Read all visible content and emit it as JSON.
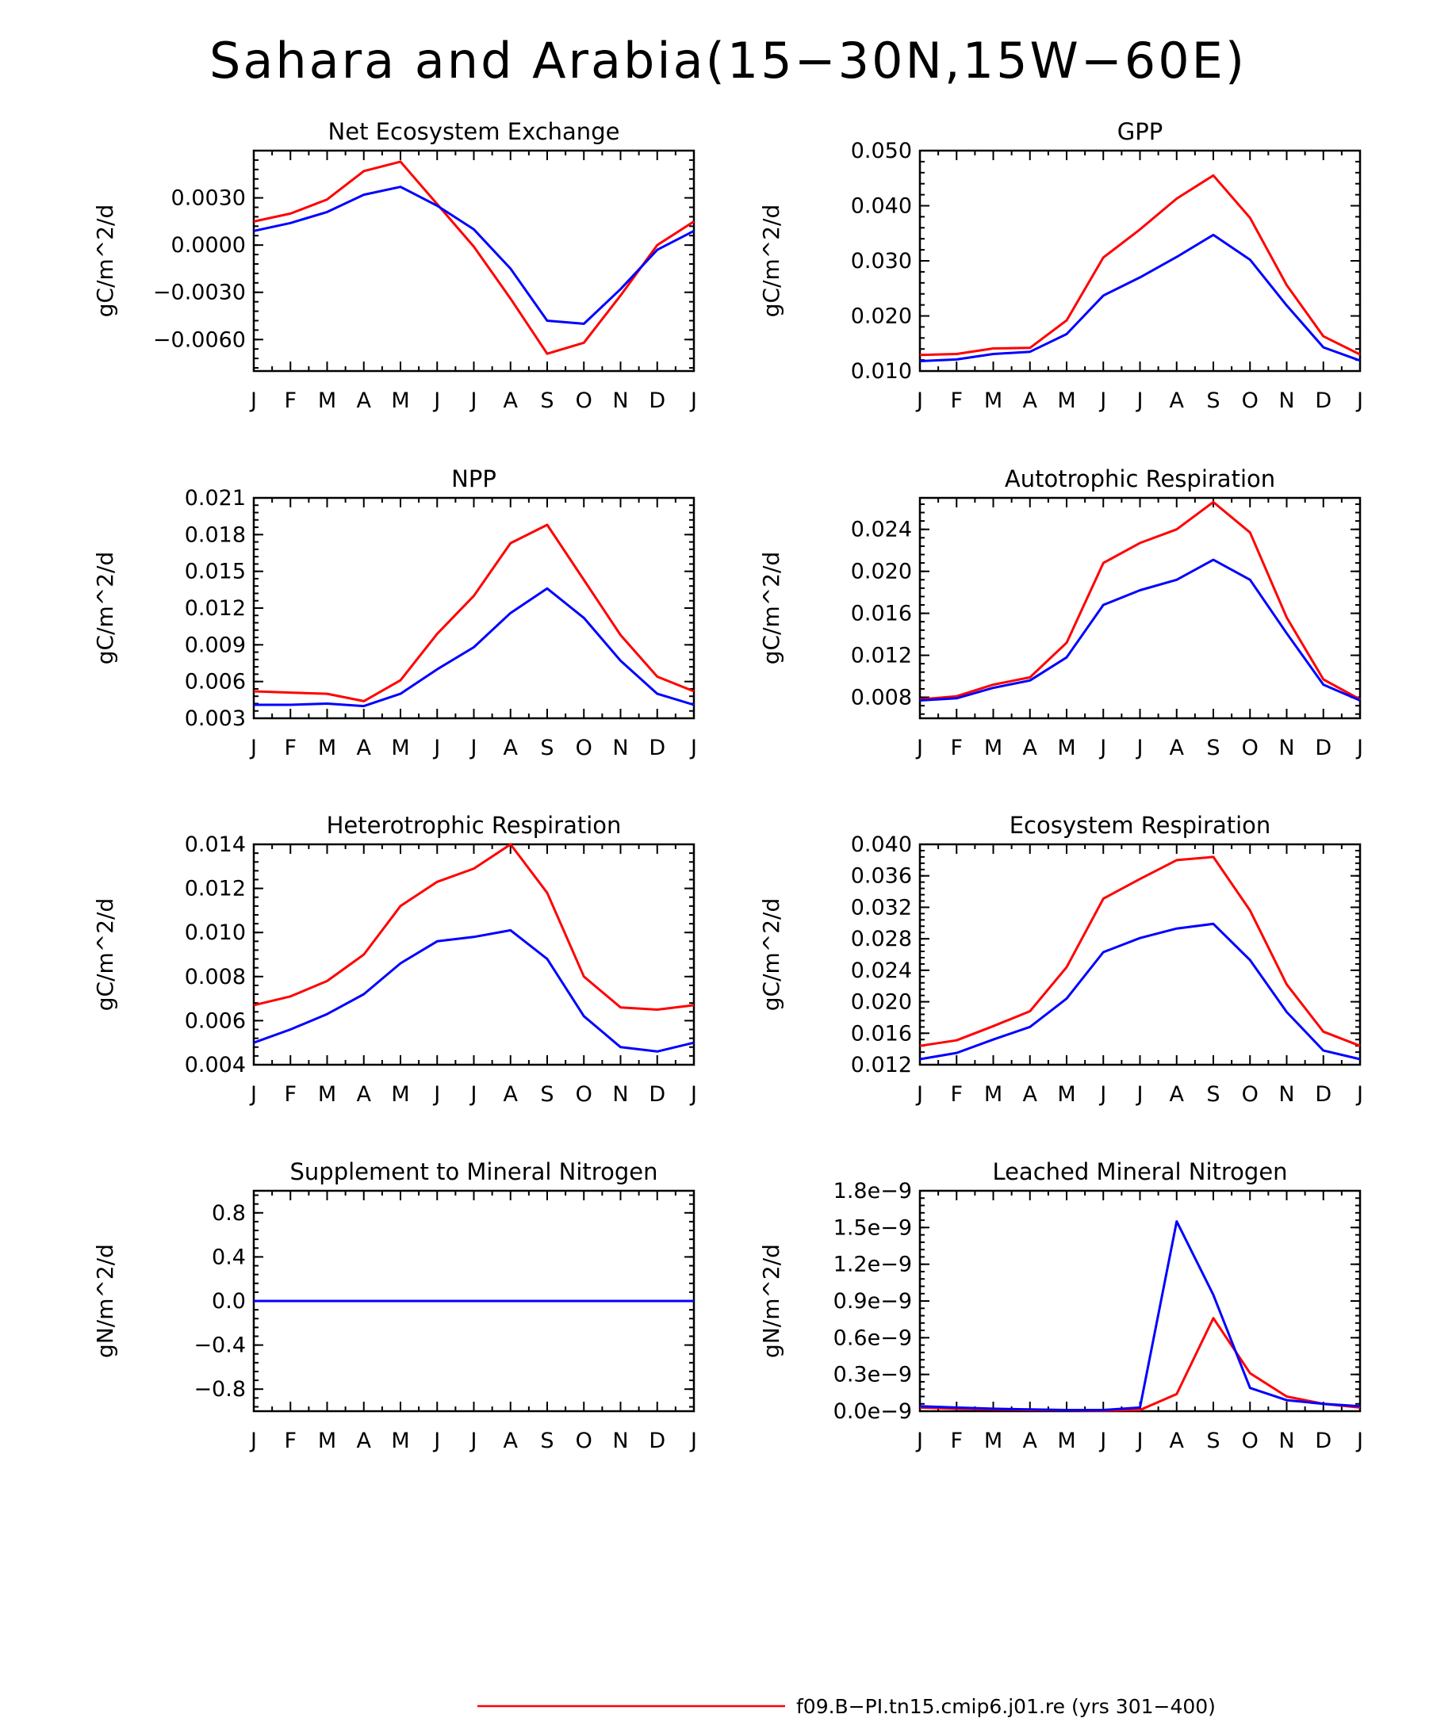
{
  "figure": {
    "title": "Sahara and Arabia(15−30N,15W−60E)",
    "series_colors": [
      "#ff0000",
      "#0000ff"
    ]
  },
  "legend": {
    "entries": [
      {
        "label": "f09.B−PI.tn15.cmip6.j01.re (yrs 301−400)",
        "color": "#ff0000"
      }
    ]
  },
  "chart_data": [
    {
      "type": "line",
      "title": "Net Ecosystem Exchange",
      "ylabel": "gC/m^2/d",
      "categories": [
        "J",
        "F",
        "M",
        "A",
        "M",
        "J",
        "J",
        "A",
        "S",
        "O",
        "N",
        "D",
        "J"
      ],
      "ylim": [
        -0.008,
        0.006
      ],
      "yticks": [
        -0.006,
        -0.003,
        0.0,
        0.003
      ],
      "ytick_labels": [
        "−0.0060",
        "−0.0030",
        "0.0000",
        "0.0030"
      ],
      "series": [
        {
          "color": "#ff0000",
          "values": [
            0.0015,
            0.002,
            0.0029,
            0.0047,
            0.0053,
            0.0026,
            -0.0001,
            -0.0034,
            -0.0069,
            -0.0062,
            -0.0032,
            0.0,
            0.0015
          ]
        },
        {
          "color": "#0000ff",
          "values": [
            0.0009,
            0.0014,
            0.0021,
            0.0032,
            0.0037,
            0.0025,
            0.001,
            -0.0015,
            -0.0048,
            -0.005,
            -0.0028,
            -0.0003,
            0.0009
          ]
        }
      ]
    },
    {
      "type": "line",
      "title": "GPP",
      "ylabel": "gC/m^2/d",
      "categories": [
        "J",
        "F",
        "M",
        "A",
        "M",
        "J",
        "J",
        "A",
        "S",
        "O",
        "N",
        "D",
        "J"
      ],
      "ylim": [
        0.01,
        0.05
      ],
      "yticks": [
        0.01,
        0.02,
        0.03,
        0.04,
        0.05
      ],
      "ytick_labels": [
        "0.010",
        "0.020",
        "0.030",
        "0.040",
        "0.050"
      ],
      "series": [
        {
          "color": "#ff0000",
          "values": [
            0.0129,
            0.0131,
            0.0141,
            0.0142,
            0.0192,
            0.0306,
            0.0357,
            0.0413,
            0.0455,
            0.0378,
            0.0256,
            0.0163,
            0.013
          ]
        },
        {
          "color": "#0000ff",
          "values": [
            0.0118,
            0.0121,
            0.0131,
            0.0135,
            0.0167,
            0.0237,
            0.027,
            0.0307,
            0.0347,
            0.0302,
            0.0219,
            0.0143,
            0.0119
          ]
        }
      ]
    },
    {
      "type": "line",
      "title": "NPP",
      "ylabel": "gC/m^2/d",
      "categories": [
        "J",
        "F",
        "M",
        "A",
        "M",
        "J",
        "J",
        "A",
        "S",
        "O",
        "N",
        "D",
        "J"
      ],
      "ylim": [
        0.003,
        0.021
      ],
      "yticks": [
        0.003,
        0.006,
        0.009,
        0.012,
        0.015,
        0.018,
        0.021
      ],
      "ytick_labels": [
        "0.003",
        "0.006",
        "0.009",
        "0.012",
        "0.015",
        "0.018",
        "0.021"
      ],
      "series": [
        {
          "color": "#ff0000",
          "values": [
            0.0052,
            0.0051,
            0.005,
            0.0044,
            0.0061,
            0.0099,
            0.013,
            0.0173,
            0.0188,
            0.0143,
            0.0098,
            0.0064,
            0.0052
          ]
        },
        {
          "color": "#0000ff",
          "values": [
            0.0041,
            0.0041,
            0.0042,
            0.004,
            0.005,
            0.007,
            0.0088,
            0.0116,
            0.0136,
            0.0112,
            0.0077,
            0.005,
            0.0041
          ]
        }
      ]
    },
    {
      "type": "line",
      "title": "Autotrophic Respiration",
      "ylabel": "gC/m^2/d",
      "categories": [
        "J",
        "F",
        "M",
        "A",
        "M",
        "J",
        "J",
        "A",
        "S",
        "O",
        "N",
        "D",
        "J"
      ],
      "ylim": [
        0.006,
        0.027
      ],
      "yticks": [
        0.008,
        0.012,
        0.016,
        0.02,
        0.024
      ],
      "ytick_labels": [
        "0.008",
        "0.012",
        "0.016",
        "0.020",
        "0.024"
      ],
      "series": [
        {
          "color": "#ff0000",
          "values": [
            0.0078,
            0.0081,
            0.0092,
            0.0099,
            0.0132,
            0.0208,
            0.0227,
            0.024,
            0.0266,
            0.0237,
            0.0156,
            0.0097,
            0.0078
          ]
        },
        {
          "color": "#0000ff",
          "values": [
            0.0077,
            0.0079,
            0.0089,
            0.0096,
            0.0118,
            0.0168,
            0.0182,
            0.0192,
            0.0211,
            0.0192,
            0.0141,
            0.0092,
            0.0077
          ]
        }
      ]
    },
    {
      "type": "line",
      "title": "Heterotrophic Respiration",
      "ylabel": "gC/m^2/d",
      "categories": [
        "J",
        "F",
        "M",
        "A",
        "M",
        "J",
        "J",
        "A",
        "S",
        "O",
        "N",
        "D",
        "J"
      ],
      "ylim": [
        0.004,
        0.014
      ],
      "yticks": [
        0.004,
        0.006,
        0.008,
        0.01,
        0.012,
        0.014
      ],
      "ytick_labels": [
        "0.004",
        "0.006",
        "0.008",
        "0.010",
        "0.012",
        "0.014"
      ],
      "series": [
        {
          "color": "#ff0000",
          "values": [
            0.0067,
            0.0071,
            0.0078,
            0.009,
            0.0112,
            0.0123,
            0.0129,
            0.014,
            0.0118,
            0.008,
            0.0066,
            0.0065,
            0.0067
          ]
        },
        {
          "color": "#0000ff",
          "values": [
            0.005,
            0.0056,
            0.0063,
            0.0072,
            0.0086,
            0.0096,
            0.0098,
            0.0101,
            0.0088,
            0.0062,
            0.0048,
            0.0046,
            0.005
          ]
        }
      ]
    },
    {
      "type": "line",
      "title": "Ecosystem Respiration",
      "ylabel": "gC/m^2/d",
      "categories": [
        "J",
        "F",
        "M",
        "A",
        "M",
        "J",
        "J",
        "A",
        "S",
        "O",
        "N",
        "D",
        "J"
      ],
      "ylim": [
        0.012,
        0.04
      ],
      "yticks": [
        0.012,
        0.016,
        0.02,
        0.024,
        0.028,
        0.032,
        0.036,
        0.04
      ],
      "ytick_labels": [
        "0.012",
        "0.016",
        "0.020",
        "0.024",
        "0.028",
        "0.032",
        "0.036",
        "0.040"
      ],
      "series": [
        {
          "color": "#ff0000",
          "values": [
            0.0144,
            0.0151,
            0.0169,
            0.0188,
            0.0244,
            0.0331,
            0.0356,
            0.038,
            0.0384,
            0.0316,
            0.0222,
            0.0162,
            0.0144
          ]
        },
        {
          "color": "#0000ff",
          "values": [
            0.0127,
            0.0135,
            0.0152,
            0.0168,
            0.0204,
            0.0263,
            0.0281,
            0.0293,
            0.0299,
            0.0253,
            0.0187,
            0.0138,
            0.0127
          ]
        }
      ]
    },
    {
      "type": "line",
      "title": "Supplement to Mineral Nitrogen",
      "ylabel": "gN/m^2/d",
      "categories": [
        "J",
        "F",
        "M",
        "A",
        "M",
        "J",
        "J",
        "A",
        "S",
        "O",
        "N",
        "D",
        "J"
      ],
      "ylim": [
        -1.0,
        1.0
      ],
      "yticks": [
        -0.8,
        -0.4,
        0.0,
        0.4,
        0.8
      ],
      "ytick_labels": [
        "−0.8",
        "−0.4",
        "0.0",
        "0.4",
        "0.8"
      ],
      "series": [
        {
          "color": "#ff0000",
          "values": [
            0,
            0,
            0,
            0,
            0,
            0,
            0,
            0,
            0,
            0,
            0,
            0,
            0
          ]
        },
        {
          "color": "#0000ff",
          "values": [
            0,
            0,
            0,
            0,
            0,
            0,
            0,
            0,
            0,
            0,
            0,
            0,
            0
          ]
        }
      ]
    },
    {
      "type": "line",
      "title": "Leached Mineral Nitrogen",
      "ylabel": "gN/m^2/d",
      "categories": [
        "J",
        "F",
        "M",
        "A",
        "M",
        "J",
        "J",
        "A",
        "S",
        "O",
        "N",
        "D",
        "J"
      ],
      "ylim": [
        0.0,
        1.8e-09
      ],
      "yticks": [
        0.0,
        3e-10,
        6e-10,
        9e-10,
        1.2e-09,
        1.5e-09,
        1.8e-09
      ],
      "ytick_labels": [
        "0.0e−9",
        "0.3e−9",
        "0.6e−9",
        "0.9e−9",
        "1.2e−9",
        "1.5e−9",
        "1.8e−9"
      ],
      "series": [
        {
          "color": "#ff0000",
          "values": [
            3e-11,
            2e-11,
            1.5e-11,
            1e-11,
            8e-12,
            5e-12,
            1e-11,
            1.4e-10,
            7.6e-10,
            3.1e-10,
            1.2e-10,
            6e-11,
            3e-11
          ]
        },
        {
          "color": "#0000ff",
          "values": [
            4e-11,
            3e-11,
            2e-11,
            1.5e-11,
            1e-11,
            1e-11,
            3e-11,
            1.55e-09,
            9.5e-10,
            1.9e-10,
            9e-11,
            6e-11,
            4e-11
          ]
        }
      ]
    }
  ]
}
